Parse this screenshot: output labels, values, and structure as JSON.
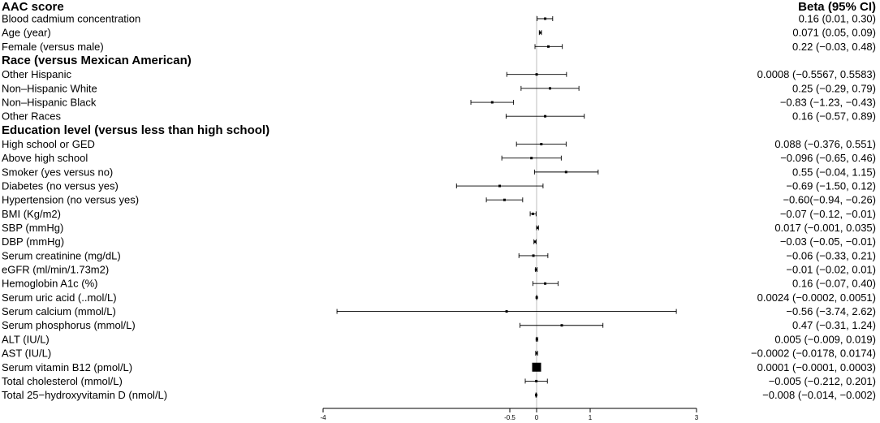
{
  "chart_data": {
    "type": "forest",
    "column_header_left": "AAC score",
    "column_header_right": "Beta (95% CI)",
    "x_ticks": [
      {
        "value": -4,
        "label": "-4"
      },
      {
        "value": -0.5,
        "label": "-0.5"
      },
      {
        "value": 0,
        "label": "0"
      },
      {
        "value": 1,
        "label": "1"
      },
      {
        "value": 3,
        "label": "3"
      }
    ],
    "reference_line": 0,
    "rows": [
      {
        "label": "Blood cadmium concentration",
        "beta": 0.16,
        "lo": 0.01,
        "hi": 0.3,
        "text": "0.16 (0.01, 0.30)"
      },
      {
        "label": "Age (year)",
        "beta": 0.071,
        "lo": 0.05,
        "hi": 0.09,
        "text": "0.071 (0.05, 0.09)"
      },
      {
        "label": "Female (versus male)",
        "beta": 0.22,
        "lo": -0.03,
        "hi": 0.48,
        "text": "0.22 (−0.03, 0.48)"
      },
      {
        "label": "Race (versus Mexican American)",
        "header": true
      },
      {
        "label": "Other Hispanic",
        "beta": 0.0008,
        "lo": -0.5567,
        "hi": 0.5583,
        "text": "0.0008 (−0.5567, 0.5583)"
      },
      {
        "label": "Non–Hispanic White",
        "beta": 0.25,
        "lo": -0.29,
        "hi": 0.79,
        "text": "0.25 (−0.29, 0.79)"
      },
      {
        "label": "Non–Hispanic Black",
        "beta": -0.83,
        "lo": -1.23,
        "hi": -0.43,
        "text": "−0.83 (−1.23, −0.43)"
      },
      {
        "label": "Other Races",
        "beta": 0.16,
        "lo": -0.57,
        "hi": 0.89,
        "text": "0.16 (−0.57, 0.89)"
      },
      {
        "label": "Education level (versus less than high school)",
        "header": true
      },
      {
        "label": "High school or GED",
        "beta": 0.088,
        "lo": -0.376,
        "hi": 0.551,
        "text": "0.088 (−0.376, 0.551)"
      },
      {
        "label": "Above high school",
        "beta": -0.096,
        "lo": -0.65,
        "hi": 0.46,
        "text": "−0.096 (−0.65, 0.46)"
      },
      {
        "label": "Smoker (yes versus no)",
        "beta": 0.55,
        "lo": -0.04,
        "hi": 1.15,
        "text": "0.55 (−0.04, 1.15)"
      },
      {
        "label": "Diabetes (no versus yes)",
        "beta": -0.69,
        "lo": -1.5,
        "hi": 0.12,
        "text": "−0.69 (−1.50, 0.12)"
      },
      {
        "label": "Hypertension (no versus yes)",
        "beta": -0.6,
        "lo": -0.94,
        "hi": -0.26,
        "text": "−0.60(−0.94, −0.26)"
      },
      {
        "label": "BMI (Kg/m2)",
        "beta": -0.07,
        "lo": -0.12,
        "hi": -0.01,
        "text": "−0.07 (−0.12, −0.01)"
      },
      {
        "label": "SBP (mmHg)",
        "beta": 0.017,
        "lo": -0.001,
        "hi": 0.035,
        "text": "0.017 (−0.001, 0.035)"
      },
      {
        "label": "DBP (mmHg)",
        "beta": -0.03,
        "lo": -0.05,
        "hi": -0.01,
        "text": "−0.03 (−0.05, −0.01)"
      },
      {
        "label": "Serum creatinine (mg/dL)",
        "beta": -0.06,
        "lo": -0.33,
        "hi": 0.21,
        "text": "−0.06 (−0.33, 0.21)"
      },
      {
        "label": "eGFR (ml/min/1.73m2)",
        "beta": -0.01,
        "lo": -0.02,
        "hi": 0.01,
        "text": "−0.01 (−0.02, 0.01)"
      },
      {
        "label": "Hemoglobin A1c (%)",
        "beta": 0.16,
        "lo": -0.07,
        "hi": 0.4,
        "text": "0.16 (−0.07, 0.40)"
      },
      {
        "label": "Serum uric acid (..mol/L)",
        "beta": 0.0024,
        "lo": -0.0002,
        "hi": 0.0051,
        "text": "0.0024 (−0.0002, 0.0051)"
      },
      {
        "label": "Serum calcium (mmol/L)",
        "beta": -0.56,
        "lo": -3.74,
        "hi": 2.62,
        "text": "−0.56 (−3.74, 2.62)"
      },
      {
        "label": "Serum phosphorus (mmol/L)",
        "beta": 0.47,
        "lo": -0.31,
        "hi": 1.24,
        "text": "0.47 (−0.31, 1.24)"
      },
      {
        "label": "ALT (IU/L)",
        "beta": 0.005,
        "lo": -0.009,
        "hi": 0.019,
        "text": "0.005 (−0.009, 0.019)"
      },
      {
        "label": "AST (IU/L)",
        "beta": -0.0002,
        "lo": -0.0178,
        "hi": 0.0174,
        "text": "−0.0002 (−0.0178, 0.0174)"
      },
      {
        "label": "Serum vitamin B12 (pmol/L)",
        "beta": 0.0001,
        "lo": -0.0001,
        "hi": 0.0003,
        "text": "0.0001 (−0.0001, 0.0003)"
      },
      {
        "label": "Total cholesterol (mmol/L)",
        "beta": -0.005,
        "lo": -0.212,
        "hi": 0.201,
        "text": "−0.005 (−0.212, 0.201)"
      },
      {
        "label": "Total 25−hydroxyvitamin D (nmol/L)",
        "beta": -0.008,
        "lo": -0.014,
        "hi": -0.002,
        "text": "−0.008 (−0.014, −0.002)"
      }
    ]
  }
}
